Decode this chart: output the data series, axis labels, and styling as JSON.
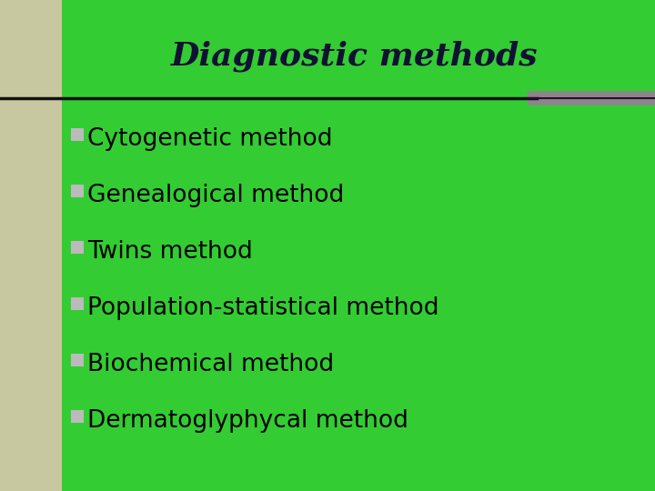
{
  "title": "Diagnostic methods",
  "background_color": "#33CC33",
  "left_panel_color": "#C8C8A0",
  "title_color": "#111133",
  "text_color": "#000000",
  "bullet_color": "#BBBBBB",
  "line_color": "#111111",
  "accent_line_color": "#888888",
  "accent_line_dark": "#330033",
  "items": [
    "Cytogenetic method",
    "Genealogical method",
    "Twins method",
    "Population-statistical method",
    "Biochemical method",
    "Dermatoglyphycal method"
  ],
  "title_fontsize": 26,
  "item_fontsize": 19,
  "figsize": [
    7.2,
    5.4
  ],
  "dpi": 100
}
